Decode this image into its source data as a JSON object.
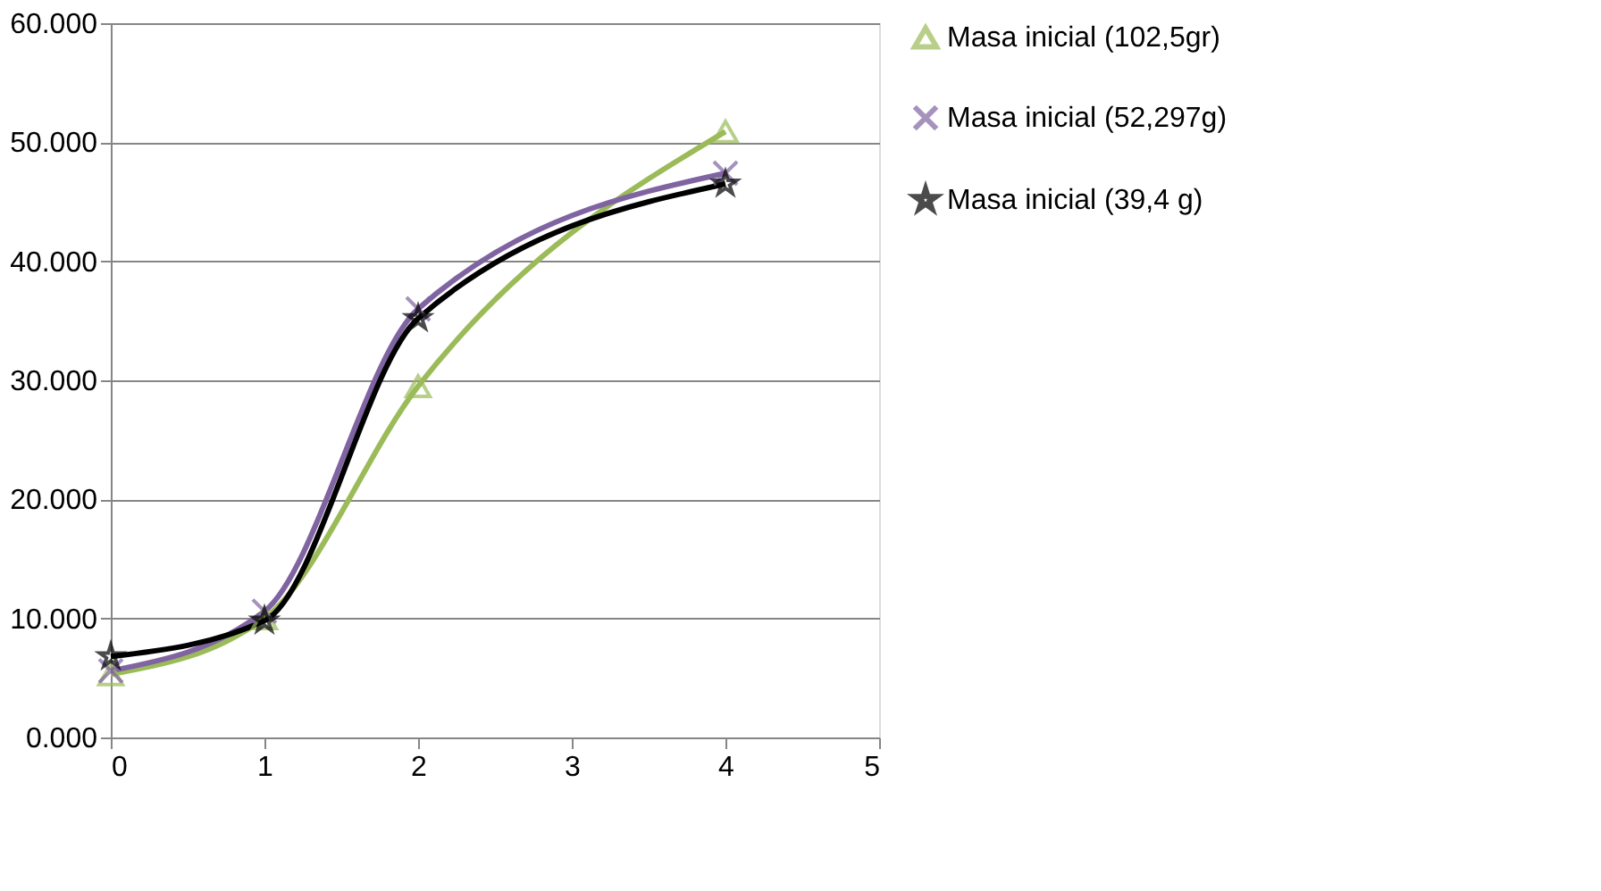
{
  "chart_data": {
    "type": "line",
    "x": [
      0,
      1,
      2,
      4
    ],
    "series": [
      {
        "name": "Masa inicial (102,5gr)",
        "color": "#9bbb59",
        "marker": "triangle",
        "values": [
          5.3,
          10.0,
          29.5,
          50.9
        ]
      },
      {
        "name": "Masa inicial (52,297g)",
        "color": "#8064a2",
        "marker": "cross",
        "values": [
          5.6,
          10.6,
          36.0,
          47.4
        ]
      },
      {
        "name": "Masa inicial (39,4 g)",
        "color": "#000000",
        "marker": "star",
        "values": [
          6.8,
          9.8,
          35.2,
          46.5
        ]
      }
    ],
    "xlim": [
      0,
      5
    ],
    "xticks": [
      0,
      1,
      2,
      3,
      4,
      5
    ],
    "ylim": [
      0,
      60
    ],
    "yticks": [
      {
        "value": 0,
        "label": "0.000"
      },
      {
        "value": 10,
        "label": "10.000"
      },
      {
        "value": 20,
        "label": "20.000"
      },
      {
        "value": 30,
        "label": "30.000"
      },
      {
        "value": 40,
        "label": "40.000"
      },
      {
        "value": 50,
        "label": "50.000"
      },
      {
        "value": 60,
        "label": "60.000"
      }
    ],
    "grid": "y",
    "legend": "right"
  }
}
